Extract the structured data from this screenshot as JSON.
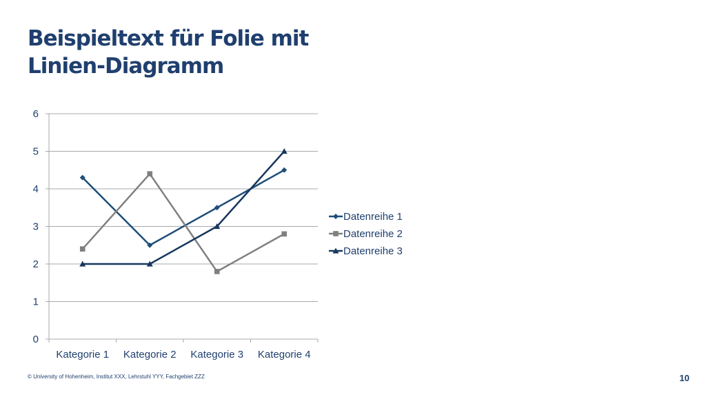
{
  "slide": {
    "title_line1": "Beispieltext für Folie mit",
    "title_line2": "Linien-Diagramm",
    "footer": "© University of Hohenheim, Institut XXX,  Lehrstuhl YYY, Fachgebiet ZZZ",
    "page_number": "10"
  },
  "colors": {
    "title": "#1f3f6e",
    "grid": "#a6a9ad",
    "text": "#1f3f6e"
  },
  "chart_data": {
    "type": "line",
    "title": "",
    "xlabel": "",
    "ylabel": "",
    "categories": [
      "Kategorie 1",
      "Kategorie 2",
      "Kategorie 3",
      "Kategorie 4"
    ],
    "ylim": [
      0,
      6
    ],
    "yticks": [
      0,
      1,
      2,
      3,
      4,
      5,
      6
    ],
    "grid": true,
    "legend_position": "right",
    "series": [
      {
        "name": "Datenreihe 1",
        "values": [
          4.3,
          2.5,
          3.5,
          4.5
        ],
        "color": "#1f4e79",
        "marker": "diamond"
      },
      {
        "name": "Datenreihe 2",
        "values": [
          2.4,
          4.4,
          1.8,
          2.8
        ],
        "color": "#808080",
        "marker": "square"
      },
      {
        "name": "Datenreihe 3",
        "values": [
          2.0,
          2.0,
          3.0,
          5.0
        ],
        "color": "#17375e",
        "marker": "triangle"
      }
    ]
  }
}
